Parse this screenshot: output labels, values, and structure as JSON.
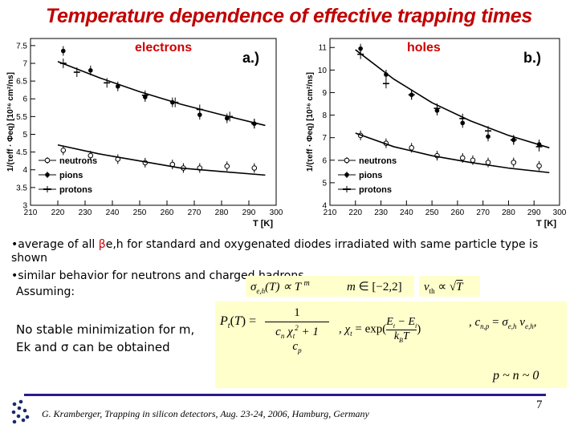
{
  "slide": {
    "title": "Temperature dependence of effective trapping times",
    "bullet1_prefix": "•average of all ",
    "bullet1_highlight": "β",
    "bullet1_suffix": "e,h for standard and oxygenated diodes irradiated with same particle type is shown",
    "bullet2": "•similar behavior for neutrons and charged hadrons",
    "assuming": "Assuming:",
    "minimization_note": "No stable minimization for m, Ek and σ can be obtained",
    "footer": "G. Kramberger, Trapping in silicon detectors, Aug.  23-24, 2006, Hamburg, Germany",
    "page_number": "7",
    "colors": {
      "title": "#c00000",
      "formula_bg": "#ffffcc",
      "footer_line": "#2b1a8c"
    }
  },
  "chart_data": [
    {
      "type": "scatter",
      "panel_label": "a.)",
      "title": "electrons",
      "xlabel": "T [K]",
      "ylabel": "1/(τeff · Φeq) [10¹⁶ cm²/ns]",
      "xlim": [
        210,
        300
      ],
      "ylim": [
        3,
        7.7
      ],
      "xticks": [
        210,
        220,
        230,
        240,
        250,
        260,
        270,
        280,
        290,
        300
      ],
      "yticks": [
        3,
        3.5,
        4,
        4.5,
        5,
        5.5,
        6,
        6.5,
        7,
        7.5
      ],
      "legend": [
        "neutrons",
        "pions",
        "protons"
      ],
      "legend_position": "bottom-left",
      "grid": false,
      "series": [
        {
          "name": "neutrons",
          "marker": "open-circle",
          "x": [
            222,
            232,
            242,
            252,
            262,
            266,
            272,
            282,
            292
          ],
          "y": [
            4.55,
            4.4,
            4.3,
            4.2,
            4.15,
            4.05,
            4.05,
            4.1,
            4.05
          ]
        },
        {
          "name": "pions",
          "marker": "filled-circle",
          "x": [
            222,
            232,
            242,
            252,
            262,
            272,
            282,
            292
          ],
          "y": [
            7.35,
            6.8,
            6.35,
            6.05,
            5.9,
            5.55,
            5.45,
            5.3
          ]
        },
        {
          "name": "protons",
          "marker": "cross",
          "x": [
            222,
            227,
            238,
            252,
            263,
            272,
            283,
            292
          ],
          "y": [
            7.0,
            6.75,
            6.45,
            6.1,
            5.9,
            5.7,
            5.5,
            5.3
          ]
        },
        {
          "name": "fit-upper",
          "style": "line",
          "x": [
            220,
            235,
            250,
            265,
            280,
            296
          ],
          "y": [
            7.05,
            6.6,
            6.2,
            5.85,
            5.55,
            5.25
          ]
        },
        {
          "name": "fit-lower",
          "style": "line",
          "x": [
            220,
            235,
            250,
            265,
            280,
            296
          ],
          "y": [
            4.7,
            4.45,
            4.25,
            4.05,
            3.95,
            3.85
          ]
        }
      ]
    },
    {
      "type": "scatter",
      "panel_label": "b.)",
      "title": "holes",
      "xlabel": "T [K]",
      "ylabel": "1/(τeff · Φeq) [10¹⁶ cm²/ns]",
      "xlim": [
        210,
        300
      ],
      "ylim": [
        4,
        11.4
      ],
      "xticks": [
        210,
        220,
        230,
        240,
        250,
        260,
        270,
        280,
        290,
        300
      ],
      "yticks": [
        4,
        5,
        6,
        7,
        8,
        9,
        10,
        11
      ],
      "legend": [
        "neutrons",
        "pions",
        "protons"
      ],
      "legend_position": "bottom-left",
      "grid": false,
      "series": [
        {
          "name": "neutrons",
          "marker": "open-circle",
          "x": [
            222,
            232,
            242,
            252,
            262,
            266,
            272,
            282,
            292
          ],
          "y": [
            7.1,
            6.75,
            6.55,
            6.2,
            6.1,
            6.0,
            5.9,
            5.9,
            5.75
          ]
        },
        {
          "name": "pions",
          "marker": "filled-circle",
          "x": [
            222,
            232,
            242,
            252,
            262,
            272,
            282,
            292
          ],
          "y": [
            10.95,
            9.8,
            8.9,
            8.2,
            7.65,
            7.05,
            6.9,
            6.7
          ]
        },
        {
          "name": "protons",
          "marker": "cross",
          "x": [
            222,
            232,
            242,
            252,
            262,
            272,
            282,
            292
          ],
          "y": [
            10.7,
            9.4,
            8.9,
            8.3,
            7.85,
            7.3,
            6.9,
            6.6
          ]
        },
        {
          "name": "fit-upper",
          "style": "line",
          "x": [
            220,
            235,
            250,
            265,
            280,
            296
          ],
          "y": [
            10.9,
            9.6,
            8.55,
            7.75,
            7.1,
            6.55
          ]
        },
        {
          "name": "fit-lower",
          "style": "line",
          "x": [
            220,
            235,
            250,
            265,
            280,
            296
          ],
          "y": [
            7.2,
            6.6,
            6.2,
            5.9,
            5.65,
            5.45
          ]
        }
      ]
    }
  ]
}
